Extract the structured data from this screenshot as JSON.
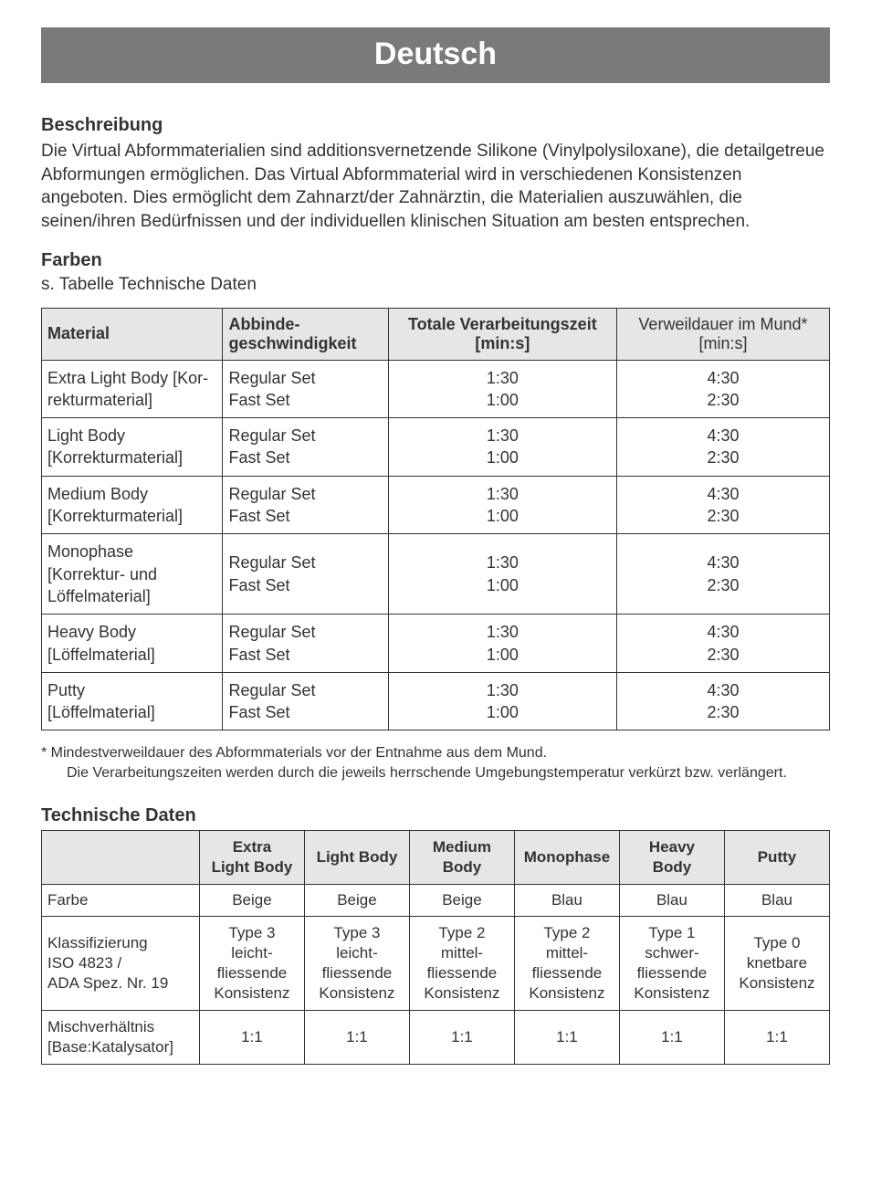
{
  "banner": {
    "title": "Deutsch"
  },
  "section1": {
    "heading": "Beschreibung",
    "text": "Die Virtual Abformmaterialien sind additionsvernetzende Silikone (Vinylpolysiloxane), die detailgetreue Abformungen ermöglichen. Das Virtual Abformmaterial wird in verschiedenen Konsistenzen angeboten. Dies ermöglicht dem Zahnarzt/der Zahnärztin, die Materialien auszuwählen, die seinen/ihren Bedürfnissen und der individuellen klinischen Situation am besten entsprechen."
  },
  "section2": {
    "heading": "Farben",
    "sub": "s. Tabelle Technische Daten"
  },
  "table1": {
    "headers": {
      "material": "Material",
      "setting_l1": "Abbinde-",
      "setting_l2": "geschwindigkeit",
      "worktime_l1": "Totale Verarbeitungszeit",
      "worktime_l2": "[min:s]",
      "mouthtime_l1": "Verweildauer im",
      "mouthtime_l2": "Mund* [min:s]"
    },
    "set_reg": "Regular Set",
    "set_fast": "Fast Set",
    "wt_reg": "1:30",
    "wt_fast": "1:00",
    "mt_reg": "4:30",
    "mt_fast": "2:30",
    "rows": [
      {
        "mat_l1": "Extra Light Body [Kor-",
        "mat_l2": "rekturmaterial]"
      },
      {
        "mat_l1": "Light Body",
        "mat_l2": "[Korrekturmaterial]"
      },
      {
        "mat_l1": "Medium Body",
        "mat_l2": "[Korrekturmaterial]"
      },
      {
        "mat_l1": "Monophase",
        "mat_l2": "[Korrektur- und",
        "mat_l3": "Löffelmaterial]"
      },
      {
        "mat_l1": "Heavy Body",
        "mat_l2": "[Löffelmaterial]"
      },
      {
        "mat_l1": "Putty",
        "mat_l2": "[Löffelmaterial]"
      }
    ]
  },
  "footnote": {
    "line1": "* Mindestverweildauer des Abformmaterials vor der Entnahme aus dem Mund.",
    "line2": "Die Verarbeitungszeiten werden durch die jeweils herrschende Umgebungstemperatur verkürzt bzw. verlängert."
  },
  "section3": {
    "heading": "Technische Daten"
  },
  "table2": {
    "headers": {
      "c0": "",
      "c1_l1": "Extra",
      "c1_l2": "Light Body",
      "c2": "Light Body",
      "c3_l1": "Medium",
      "c3_l2": "Body",
      "c4": "Monophase",
      "c5_l1": "Heavy",
      "c5_l2": "Body",
      "c6": "Putty"
    },
    "rows": {
      "farbe": {
        "label": "Farbe",
        "v": [
          "Beige",
          "Beige",
          "Beige",
          "Blau",
          "Blau",
          "Blau"
        ]
      },
      "klass": {
        "label_l1": "Klassifizierung",
        "label_l2": "ISO 4823 /",
        "label_l3": "ADA Spez. Nr. 19",
        "v1": [
          "Type 3",
          "leicht-",
          "fliessende",
          "Konsistenz"
        ],
        "v2": [
          "Type 3",
          "leicht-",
          "fliessende",
          "Konsistenz"
        ],
        "v3": [
          "Type 2",
          "mittel-",
          "fliessende",
          "Konsistenz"
        ],
        "v4": [
          "Type 2",
          "mittel-",
          "fliessende",
          "Konsistenz"
        ],
        "v5": [
          "Type 1",
          "schwer-",
          "fliessende",
          "Konsistenz"
        ],
        "v6": [
          "Type 0",
          "knetbare",
          "Konsistenz"
        ]
      },
      "misch": {
        "label_l1": "Mischverhältnis",
        "label_l2": "[Base:Katalysator]",
        "v": [
          "1:1",
          "1:1",
          "1:1",
          "1:1",
          "1:1",
          "1:1"
        ]
      }
    }
  }
}
